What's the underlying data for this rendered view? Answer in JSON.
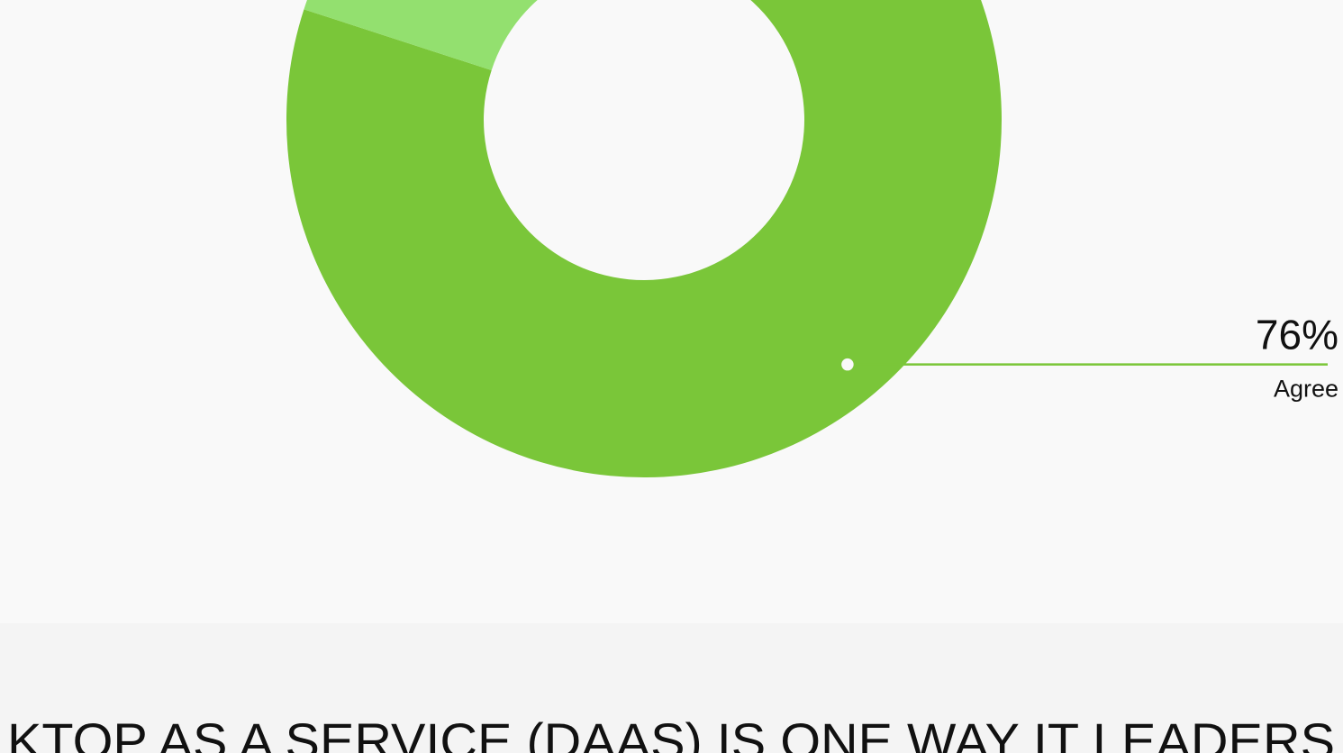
{
  "chart_data": {
    "type": "donut",
    "categories": [
      "Agree",
      null
    ],
    "values": [
      76,
      24
    ],
    "value_labels": [
      "76%",
      null
    ],
    "colors": [
      "#7ac639",
      "#93e06f"
    ]
  },
  "heading": "KTOP AS A SERVICE (DAAS) IS ONE WAY IT LEADERS"
}
